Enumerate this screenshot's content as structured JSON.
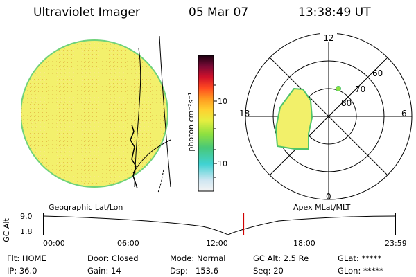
{
  "header": {
    "title": "Ultraviolet Imager",
    "date": "05 Mar 07",
    "time": "13:38:49 UT"
  },
  "colorbar": {
    "unit_label": "photon cm⁻²s⁻¹",
    "ticks": [
      "100",
      "10"
    ],
    "scale": "log"
  },
  "polar": {
    "mlt_labels": {
      "top": "12",
      "right": "6",
      "bottom": "0",
      "left": "18"
    },
    "lat_labels": [
      "60",
      "70",
      "80"
    ]
  },
  "panel_captions": {
    "left": "Geographic Lat/Lon",
    "right": "Apex MLat/MLT"
  },
  "timeline": {
    "ylabel": "GC Alt",
    "y_ticks": [
      "9.0",
      "1.8"
    ],
    "x_ticks": [
      "00:00",
      "06:00",
      "12:00",
      "18:00",
      "23:59"
    ],
    "current_time": "13:38:49",
    "marker_color": "#d00000"
  },
  "info": {
    "flt": "Flt: HOME",
    "ip": "IP: 36.0",
    "door": "Door: Closed",
    "gain": "Gain: 14",
    "mode": "Mode: Normal",
    "dsp": "Dsp:   153.6",
    "gc_alt": "GC Alt: 2.5 Re",
    "seq": "Seq: 20",
    "glat": "GLat: *****",
    "glon": "GLon: *****"
  },
  "colors": {
    "disk_fill": "#f2f06a",
    "disk_rim": "#6fd27a",
    "oval_fill": "#f2f06a",
    "oval_rim": "#4fc46a"
  }
}
